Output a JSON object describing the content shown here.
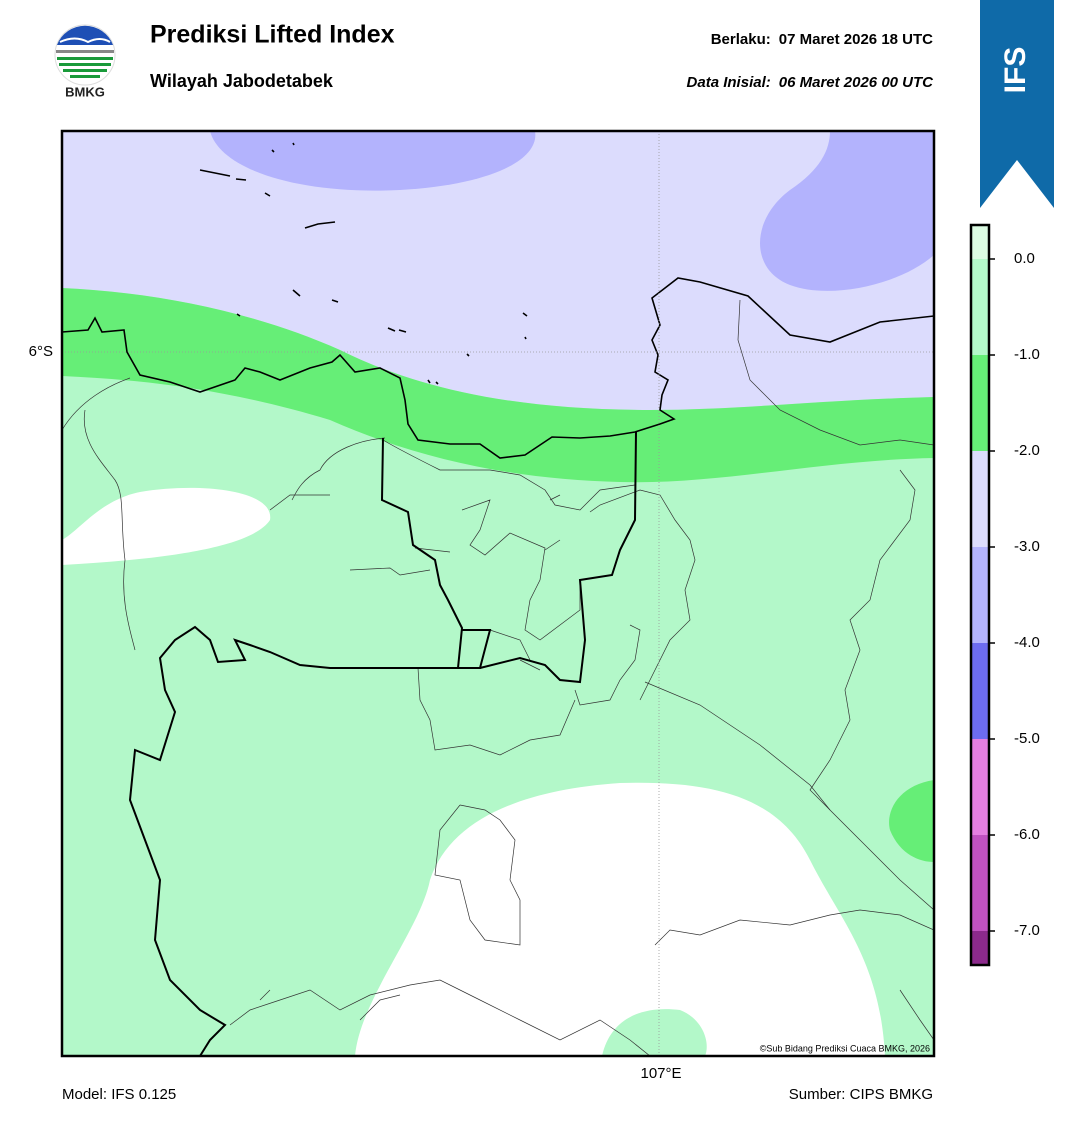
{
  "header": {
    "logo_text": "BMKG",
    "title": "Prediksi Lifted Index",
    "subtitle": "Wilayah Jabodetabek",
    "valid_label": "Berlaku:",
    "valid_time": "07 Maret 2026 18 UTC",
    "init_label": "Data Inisial:",
    "init_time": "06 Maret 2026 00 UTC",
    "model_badge": "IFS"
  },
  "map": {
    "lat_label": "6°S",
    "lon_label": "107°E",
    "copyright": "©Sub Bidang Prediksi Cuaca BMKG, 2026"
  },
  "colorbar": {
    "ticks": [
      {
        "value": 0,
        "label": "0.0"
      },
      {
        "value": -1,
        "label": "-1.0"
      },
      {
        "value": -2,
        "label": "-2.0"
      },
      {
        "value": -3,
        "label": "-3.0"
      },
      {
        "value": -4,
        "label": "-4.0"
      },
      {
        "value": -5,
        "label": "-5.0"
      },
      {
        "value": -6,
        "label": "-6.0"
      },
      {
        "value": -7,
        "label": "-7.0"
      }
    ],
    "colors": [
      "#dbfbe2",
      "#b3f8c9",
      "#66ee77",
      "#dcdcfd",
      "#b3b3fd",
      "#6d6cf0",
      "#e57fe0",
      "#c052c0",
      "#8c2a8c"
    ]
  },
  "footer": {
    "model": "Model: IFS 0.125",
    "source": "Sumber: CIPS BMKG"
  }
}
